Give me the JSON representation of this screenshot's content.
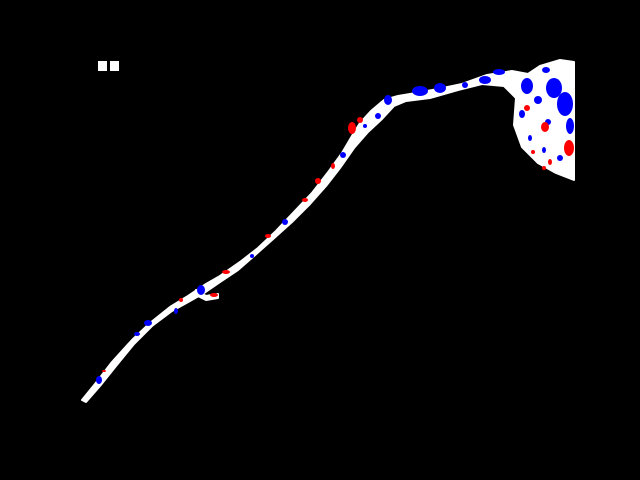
{
  "image": {
    "background_color": "#000000",
    "channel_color": "#ffffff",
    "marker_color": "#ffffff",
    "accent_colors": {
      "blue": "#0000ff",
      "red": "#ff0000"
    }
  },
  "legend_marker": {
    "icon": "small-white-blocks-icon"
  }
}
